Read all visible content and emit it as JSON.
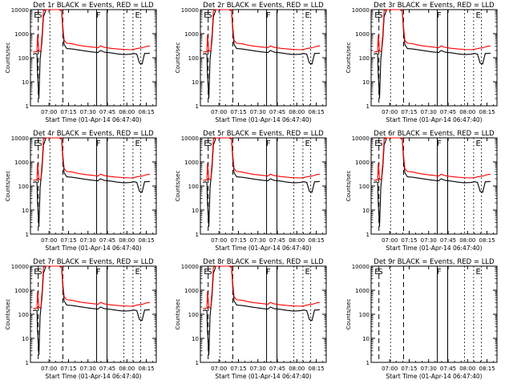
{
  "colors": {
    "background": "#ffffff",
    "events": "#000000",
    "lld": "#ff0000",
    "axes": "#000000"
  },
  "shared": {
    "y_label": "Counts/sec",
    "x_title": "Start Time (01-Apr-14 06:47:40)",
    "x_ticks": [
      "07:00",
      "07:15",
      "07:30",
      "07:45",
      "08:00",
      "08:15"
    ],
    "y_ticks": [
      "1",
      "10",
      "100",
      "1000",
      "10000"
    ]
  },
  "panels": [
    {
      "title": "Det 1r BLACK = Events, RED = LLD",
      "markers": [
        "E",
        "S",
        "F",
        "E"
      ],
      "has_data": true
    },
    {
      "title": "Det 2r BLACK = Events, RED = LLD",
      "markers": [
        "E",
        "S",
        "F",
        "E"
      ],
      "has_data": true
    },
    {
      "title": "Det 3r BLACK = Events, RED = LLD",
      "markers": [
        "E",
        "S",
        "F",
        "E"
      ],
      "has_data": true
    },
    {
      "title": "Det 4r BLACK = Events, RED = LLD",
      "markers": [
        "E",
        "S",
        "F",
        "E"
      ],
      "has_data": true
    },
    {
      "title": "Det 5r BLACK = Events, RED = LLD",
      "markers": [
        "E",
        "S",
        "F",
        "E"
      ],
      "has_data": true
    },
    {
      "title": "Det 6r BLACK = Events, RED = LLD",
      "markers": [
        "E",
        "S",
        "F",
        "E"
      ],
      "has_data": true
    },
    {
      "title": "Det 7r BLACK = Events, RED = LLD",
      "markers": [
        "E",
        "S",
        "F",
        "E"
      ],
      "has_data": true
    },
    {
      "title": "Det 8r BLACK = Events, RED = LLD",
      "markers": [
        "E",
        "S",
        "F",
        "E"
      ],
      "has_data": true
    },
    {
      "title": "Det 9r BLACK = Events, RED = LLD",
      "markers": [
        "E",
        "S",
        "F",
        "E"
      ],
      "has_data": false
    }
  ],
  "chart_data": {
    "type": "line",
    "x_unit": "minutes after 06:47:40 UT",
    "y_scale": "log",
    "ylim": [
      1,
      10000
    ],
    "xlim": [
      -2,
      95
    ],
    "x_tick_values": [
      12.33,
      27.33,
      42.33,
      57.33,
      72.33,
      87.33
    ],
    "y_tick_values": [
      1,
      10,
      100,
      1000,
      10000
    ],
    "vertical_lines": [
      {
        "t": 4,
        "style": "dash"
      },
      {
        "t": 13,
        "style": "dot"
      },
      {
        "t": 23,
        "style": "dash"
      },
      {
        "t": 49,
        "style": "solid"
      },
      {
        "t": 57,
        "style": "solid"
      },
      {
        "t": 70,
        "style": "dot"
      },
      {
        "t": 77,
        "style": "dot"
      },
      {
        "t": 83,
        "style": "dot"
      }
    ],
    "marker_positions": [
      0,
      2.5,
      48,
      78
    ],
    "series": [
      {
        "name": "Events",
        "color": "#000000",
        "x": [
          0,
          2,
          3,
          3.5,
          4.5,
          5.5,
          6,
          7,
          8,
          10,
          12,
          13,
          15,
          18,
          20,
          22,
          23,
          24,
          26,
          30,
          35,
          40,
          45,
          50,
          52,
          55,
          60,
          65,
          70,
          75,
          78,
          80,
          82,
          84,
          86,
          88,
          90
        ],
        "y": [
          140,
          150,
          140,
          20,
          2,
          90,
          160,
          600,
          5000,
          10000,
          10000,
          10000,
          10000,
          10000,
          10000,
          9000,
          1200,
          350,
          240,
          230,
          210,
          190,
          175,
          165,
          200,
          170,
          160,
          145,
          135,
          140,
          150,
          140,
          60,
          55,
          150,
          150,
          155
        ]
      },
      {
        "name": "LLD",
        "color": "#ff0000",
        "x": [
          0,
          2,
          3,
          3.5,
          4.5,
          5.5,
          6,
          7,
          8,
          10,
          12,
          13,
          15,
          18,
          20,
          22,
          23,
          24,
          26,
          30,
          35,
          40,
          45,
          50,
          52,
          55,
          60,
          65,
          70,
          75,
          78,
          80,
          82,
          84,
          86,
          88,
          90
        ],
        "y": [
          170,
          180,
          175,
          900,
          200,
          180,
          200,
          1000,
          9000,
          10000,
          10000,
          10000,
          10000,
          10000,
          10000,
          10000,
          1800,
          520,
          400,
          380,
          330,
          300,
          280,
          260,
          310,
          270,
          245,
          230,
          220,
          215,
          225,
          240,
          250,
          260,
          280,
          300,
          310
        ]
      }
    ]
  }
}
